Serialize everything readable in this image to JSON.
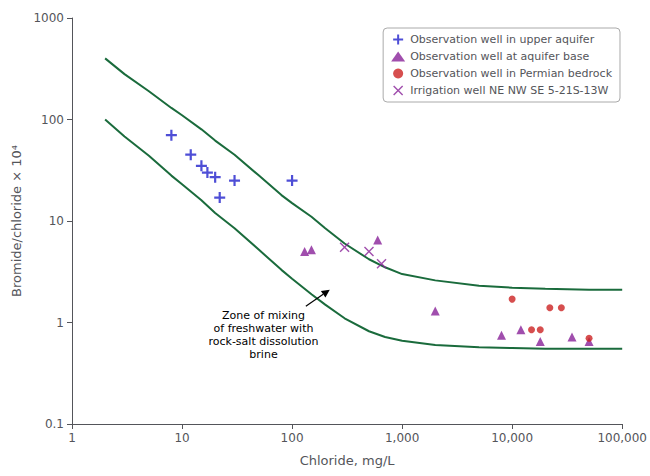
{
  "chart_data": {
    "type": "scatter",
    "xlabel": "Chloride, mg/L",
    "ylabel": "Bromide/chloride × 10⁴",
    "log": true,
    "grid": false,
    "legend": "upper right",
    "xlim": [
      1,
      100000
    ],
    "ylim": [
      0.1,
      1000
    ],
    "xticks": [
      1,
      10,
      100,
      {
        "value": 1000,
        "label": "1,000"
      },
      {
        "value": 10000,
        "label": "10,000"
      },
      {
        "value": 100000,
        "label": "100,000"
      }
    ],
    "yticks": [
      0.1,
      1,
      10,
      100,
      1000
    ],
    "series": [
      {
        "type": "line",
        "color": "#1a6b3c",
        "line_style": "solid",
        "x": [
          2,
          3,
          5,
          8,
          10,
          15,
          20,
          30,
          50,
          80,
          100,
          150,
          200,
          300,
          500,
          700,
          1000,
          2000,
          5000,
          10000,
          20000,
          50000,
          100000
        ],
        "values": [
          400,
          280,
          190,
          130,
          110,
          80,
          62,
          45,
          28,
          18,
          15,
          11,
          8.5,
          6.0,
          4.2,
          3.5,
          3.0,
          2.6,
          2.3,
          2.2,
          2.15,
          2.1,
          2.1
        ]
      },
      {
        "type": "line",
        "color": "#1a6b3c",
        "line_style": "solid",
        "x": [
          2,
          3,
          5,
          8,
          10,
          15,
          20,
          30,
          50,
          80,
          100,
          150,
          200,
          300,
          500,
          700,
          1000,
          2000,
          5000,
          10000,
          20000,
          50000,
          100000
        ],
        "values": [
          100,
          68,
          44,
          28,
          23,
          16,
          12,
          8.5,
          5.2,
          3.3,
          2.7,
          1.9,
          1.5,
          1.1,
          0.82,
          0.72,
          0.66,
          0.6,
          0.57,
          0.56,
          0.55,
          0.55,
          0.55
        ]
      },
      {
        "type": "scatter",
        "name": "Observation well in upper aquifer",
        "marker": "plus",
        "color": "#2222cc",
        "x": [
          8,
          12,
          15,
          17,
          20,
          22,
          30,
          100
        ],
        "values": [
          70,
          45,
          35,
          30,
          27,
          17,
          25,
          25
        ]
      },
      {
        "type": "scatter",
        "name": "Observation well at aquifer base",
        "marker": "triangle",
        "color": "#882299",
        "x": [
          130,
          150,
          600,
          2000,
          8000,
          12000,
          18000,
          35000,
          50000
        ],
        "values": [
          5.0,
          5.2,
          6.5,
          1.3,
          0.75,
          0.85,
          0.65,
          0.72,
          0.65
        ]
      },
      {
        "type": "scatter",
        "name": "Observation well in Permian bedrock",
        "marker": "circle",
        "color": "#cc2222",
        "x": [
          10000,
          15000,
          18000,
          22000,
          28000,
          50000
        ],
        "values": [
          1.7,
          0.85,
          0.85,
          1.4,
          1.4,
          0.7
        ]
      },
      {
        "type": "scatter",
        "name": "Irrigation well NE NW SE 5-21S-13W",
        "marker": "cross",
        "color": "#882299",
        "x": [
          300,
          500,
          650
        ],
        "values": [
          5.5,
          5.0,
          3.8
        ]
      }
    ],
    "annotations": [
      {
        "text": "Zone of mixing\nof freshwater with\nrock-salt dissolution\nbrine",
        "xytext": [
          55,
          0.75
        ],
        "xy": [
          220,
          2.1
        ]
      }
    ]
  }
}
